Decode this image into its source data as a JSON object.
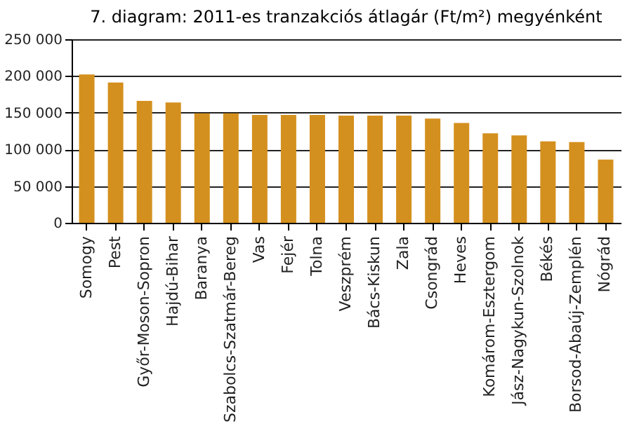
{
  "chart_data": {
    "type": "bar",
    "title": "7. diagram: 2011-es tranzakciós átlagár (Ft/m²) megyénként",
    "categories": [
      "Somogy",
      "Pest",
      "Győr-Moson-Sopron",
      "Hajdú-Bihar",
      "Baranya",
      "Szabolcs-Szatmár-Bereg",
      "Vas",
      "Fejér",
      "Tolna",
      "Veszprém",
      "Bács-Kiskun",
      "Zala",
      "Csongrád",
      "Heves",
      "Komárom-Esztergom",
      "Jász-Nagykun-Szolnok",
      "Békés",
      "Borsod-Abaúj-Zemplén",
      "Nógrád"
    ],
    "values": [
      202000,
      191000,
      166000,
      164000,
      149000,
      149000,
      147000,
      147000,
      147000,
      146000,
      146000,
      146000,
      142000,
      136000,
      122000,
      119000,
      111000,
      110000,
      86000
    ],
    "color": "#d4901e",
    "ylim": [
      0,
      250000
    ],
    "yticks": [
      {
        "value": 0,
        "label": "0"
      },
      {
        "value": 50000,
        "label": "50 000"
      },
      {
        "value": 100000,
        "label": "100 000"
      },
      {
        "value": 150000,
        "label": "150 000"
      },
      {
        "value": 200000,
        "label": "200 000"
      },
      {
        "value": 250000,
        "label": "250 000"
      }
    ],
    "grid": "y"
  }
}
